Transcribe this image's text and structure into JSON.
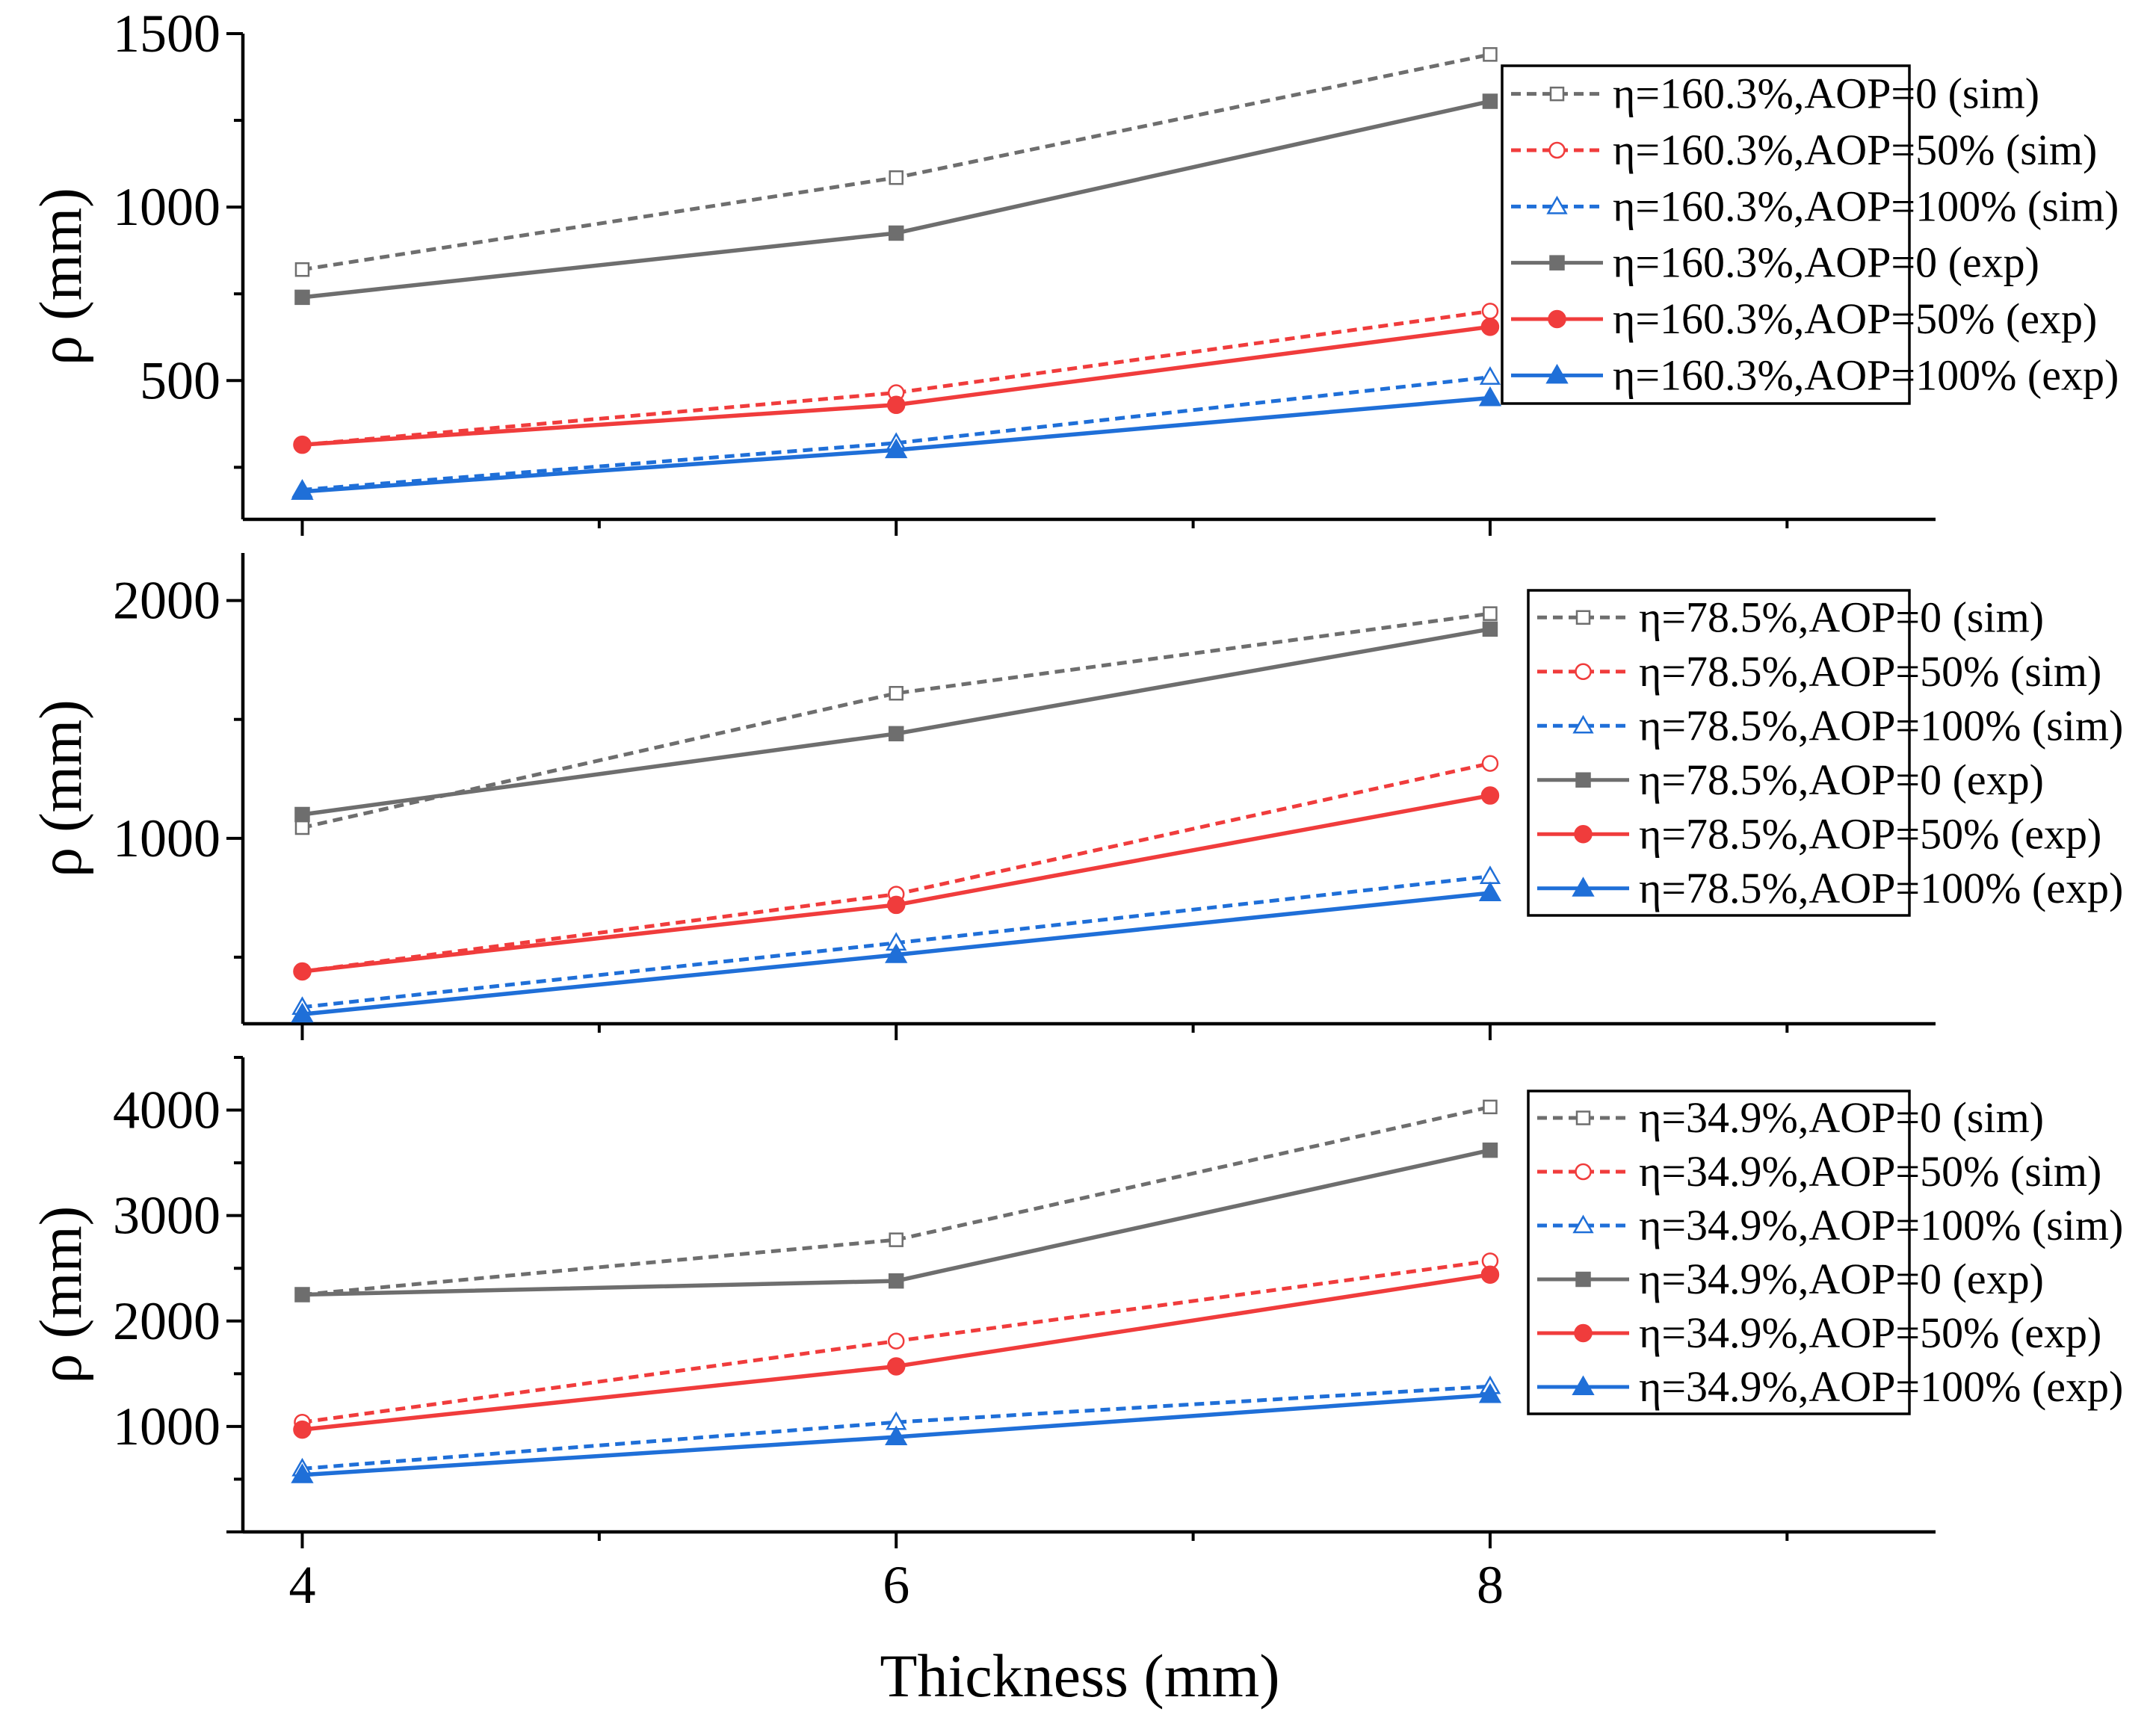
{
  "chart_data": {
    "type": "line",
    "xlabel": "Thickness (mm)",
    "x": [
      4,
      6,
      8
    ],
    "xticks": [
      "4",
      "6",
      "8"
    ],
    "xlim": [
      3.8,
      9.5
    ],
    "colors": {
      "gray": "#6e6e6e",
      "red": "#f03c3c",
      "blue": "#1f6fd8"
    },
    "panels": [
      {
        "ylabel": "ρ (mm)",
        "ylim": [
          100,
          1500
        ],
        "yticks": [
          {
            "value": 500,
            "label": "500"
          },
          {
            "value": 1000,
            "label": "1000"
          },
          {
            "value": 1500,
            "label": "1500"
          }
        ],
        "series": [
          {
            "name": "η=160.3%,AOP=0 (sim)",
            "color": "gray",
            "style": "dashed",
            "marker": "square-open",
            "values": [
              820,
              1085,
              1440
            ]
          },
          {
            "name": "η=160.3%,AOP=50% (sim)",
            "color": "red",
            "style": "dashed",
            "marker": "circle-open",
            "values": [
              315,
              465,
              700
            ]
          },
          {
            "name": "η=160.3%,AOP=100% (sim)",
            "color": "blue",
            "style": "dashed",
            "marker": "triangle-open",
            "values": [
              185,
              320,
              510
            ]
          },
          {
            "name": "η=160.3%,AOP=0 (exp)",
            "color": "gray",
            "style": "solid",
            "marker": "square-filled",
            "values": [
              740,
              925,
              1305
            ]
          },
          {
            "name": "η=160.3%,AOP=50% (exp)",
            "color": "red",
            "style": "solid",
            "marker": "circle-filled",
            "values": [
              315,
              430,
              655
            ]
          },
          {
            "name": "η=160.3%,AOP=100% (exp)",
            "color": "blue",
            "style": "solid",
            "marker": "triangle-filled",
            "values": [
              180,
              300,
              450
            ]
          }
        ]
      },
      {
        "ylabel": "ρ (mm)",
        "ylim": [
          220,
          2200
        ],
        "yticks": [
          {
            "value": 1000,
            "label": "1000"
          },
          {
            "value": 2000,
            "label": "2000"
          }
        ],
        "series": [
          {
            "name": "η=78.5%,AOP=0 (sim)",
            "color": "gray",
            "style": "dashed",
            "marker": "square-open",
            "values": [
              1045,
              1610,
              1945
            ]
          },
          {
            "name": "η=78.5%,AOP=50% (sim)",
            "color": "red",
            "style": "dashed",
            "marker": "circle-open",
            "values": [
              440,
              765,
              1315
            ]
          },
          {
            "name": "η=78.5%,AOP=100% (sim)",
            "color": "blue",
            "style": "dashed",
            "marker": "triangle-open",
            "values": [
              290,
              560,
              840
            ]
          },
          {
            "name": "η=78.5%,AOP=0 (exp)",
            "color": "gray",
            "style": "solid",
            "marker": "square-filled",
            "values": [
              1100,
              1440,
              1880
            ]
          },
          {
            "name": "η=78.5%,AOP=50% (exp)",
            "color": "red",
            "style": "solid",
            "marker": "circle-filled",
            "values": [
              440,
              720,
              1180
            ]
          },
          {
            "name": "η=78.5%,AOP=100% (exp)",
            "color": "blue",
            "style": "solid",
            "marker": "triangle-filled",
            "values": [
              260,
              510,
              770
            ]
          }
        ]
      },
      {
        "ylabel": "ρ (mm)",
        "ylim": [
          0,
          4500
        ],
        "yticks": [
          {
            "value": 1000,
            "label": "1000"
          },
          {
            "value": 2000,
            "label": "2000"
          },
          {
            "value": 3000,
            "label": "3000"
          },
          {
            "value": 4000,
            "label": "4000"
          }
        ],
        "series": [
          {
            "name": "η=34.9%,AOP=0 (sim)",
            "color": "gray",
            "style": "dashed",
            "marker": "square-open",
            "values": [
              2250,
              2770,
              4030
            ]
          },
          {
            "name": "η=34.9%,AOP=50% (sim)",
            "color": "red",
            "style": "dashed",
            "marker": "circle-open",
            "values": [
              1040,
              1810,
              2570
            ]
          },
          {
            "name": "η=34.9%,AOP=100% (sim)",
            "color": "blue",
            "style": "dashed",
            "marker": "triangle-open",
            "values": [
              600,
              1040,
              1380
            ]
          },
          {
            "name": "η=34.9%,AOP=0 (exp)",
            "color": "gray",
            "style": "solid",
            "marker": "square-filled",
            "values": [
              2250,
              2380,
              3620
            ]
          },
          {
            "name": "η=34.9%,AOP=50% (exp)",
            "color": "red",
            "style": "solid",
            "marker": "circle-filled",
            "values": [
              970,
              1570,
              2440
            ]
          },
          {
            "name": "η=34.9%,AOP=100% (exp)",
            "color": "blue",
            "style": "solid",
            "marker": "triangle-filled",
            "values": [
              540,
              900,
              1300
            ]
          }
        ]
      }
    ]
  }
}
